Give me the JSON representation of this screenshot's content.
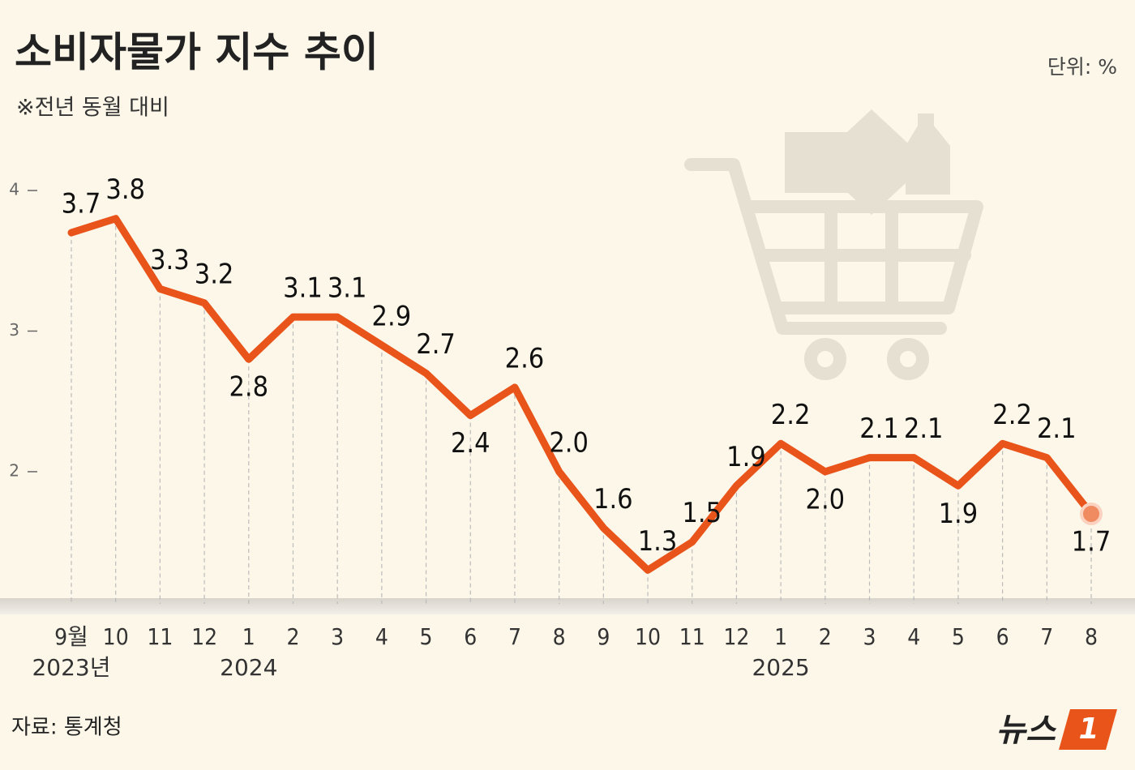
{
  "chart_data": {
    "type": "line",
    "title": "소비자물가 지수 추이",
    "subtitle": "※전년 동월 대비",
    "unit": "단위:  %",
    "source": "자료: 통계청",
    "logo": [
      "뉴스",
      "1"
    ],
    "categories": [
      "9월",
      "10",
      "11",
      "12",
      "1",
      "2",
      "3",
      "4",
      "5",
      "6",
      "7",
      "8",
      "9",
      "10",
      "11",
      "12",
      "1",
      "2",
      "3",
      "4",
      "5",
      "6",
      "7",
      "8"
    ],
    "year_labels": [
      "2023년",
      "2024",
      "2025"
    ],
    "series": [
      {
        "name": "소비자물가 지수",
        "color": "#e8541a",
        "values": [
          3.7,
          3.8,
          3.3,
          3.2,
          2.8,
          3.1,
          3.1,
          2.9,
          2.7,
          2.4,
          2.6,
          2.0,
          1.6,
          1.3,
          1.5,
          1.9,
          2.2,
          2.0,
          2.1,
          2.1,
          1.9,
          2.2,
          2.1,
          1.7
        ],
        "value_labels": [
          "3.7",
          "3.8",
          "3.3",
          "3.2",
          "2.8",
          "3.1",
          "3.1",
          "2.9",
          "2.7",
          "2.4",
          "2.6",
          "2.0",
          "1.6",
          "1.3",
          "1.5",
          "1.9",
          "2.2",
          "2.0",
          "2.1",
          "2.1",
          "1.9",
          "2.2",
          "2.1",
          "1.7"
        ]
      }
    ],
    "ylim": [
      1.06,
      4.3
    ],
    "yticks": [
      2,
      3,
      4
    ],
    "grid": false
  }
}
